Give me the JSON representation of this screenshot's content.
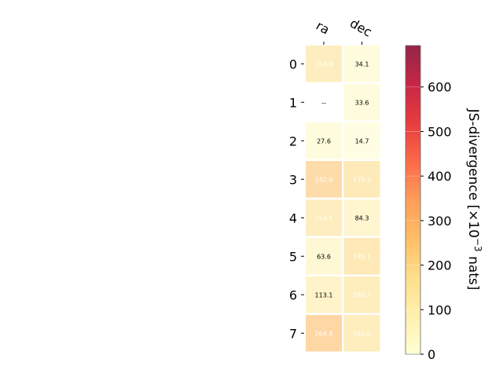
{
  "chart_data": {
    "type": "heatmap",
    "columns": [
      "ra",
      "dec"
    ],
    "rows": [
      "0",
      "1",
      "2",
      "3",
      "4",
      "5",
      "6",
      "7"
    ],
    "values": [
      [
        154.9,
        34.1
      ],
      [
        null,
        33.6
      ],
      [
        27.6,
        14.7
      ],
      [
        242.0,
        179.2
      ],
      [
        154.1,
        84.3
      ],
      [
        63.6,
        185.1
      ],
      [
        113.1,
        160.7
      ],
      [
        264.8,
        161.0
      ]
    ],
    "cell_labels": [
      [
        "154.9",
        "34.1"
      ],
      [
        "--",
        "33.6"
      ],
      [
        "27.6",
        "14.7"
      ],
      [
        "242.0",
        "179.2"
      ],
      [
        "154.1",
        "84.3"
      ],
      [
        "63.6",
        "185.1"
      ],
      [
        "113.1",
        "160.7"
      ],
      [
        "264.8",
        "161.0"
      ]
    ],
    "colorbar": {
      "label_main": "JS-divergence [×10",
      "label_exp": "−3",
      "label_unit": " nats]",
      "range": [
        0,
        693
      ],
      "ticks": [
        "0",
        "100",
        "200",
        "300",
        "400",
        "500",
        "600"
      ],
      "tick_values": [
        0,
        100,
        200,
        300,
        400,
        500,
        600
      ],
      "colormap": "YlOrRd"
    },
    "label_light_threshold": 150
  }
}
